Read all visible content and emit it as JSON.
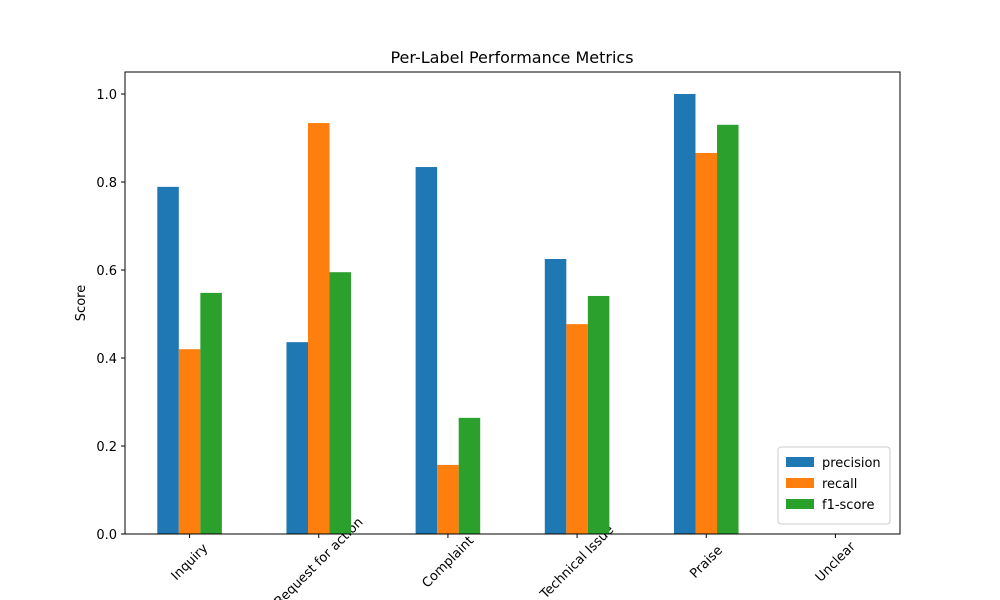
{
  "chart_data": {
    "type": "bar",
    "title": "Per-Label Performance Metrics",
    "y_label": "Score",
    "categories": [
      "Inquiry",
      "Request for action",
      "Complaint",
      "Technical Issue",
      "Praise",
      "Unclear"
    ],
    "series": [
      {
        "name": "precision",
        "color": "#1f77b4",
        "values": [
          0.789,
          0.436,
          0.834,
          0.625,
          1.0,
          0
        ]
      },
      {
        "name": "recall",
        "color": "#ff7f0e",
        "values": [
          0.42,
          0.934,
          0.157,
          0.477,
          0.866,
          0
        ]
      },
      {
        "name": "f1-score",
        "color": "#2ca02c",
        "values": [
          0.548,
          0.595,
          0.264,
          0.541,
          0.93,
          0
        ]
      }
    ],
    "ylim": [
      0,
      1.05
    ],
    "yticks": [
      {
        "value": 0,
        "label": "0.0"
      },
      0.2,
      0.4,
      0.6,
      0.8,
      {
        "value": 1,
        "label": "1.0"
      }
    ],
    "grid": false,
    "legend": "lower right"
  }
}
